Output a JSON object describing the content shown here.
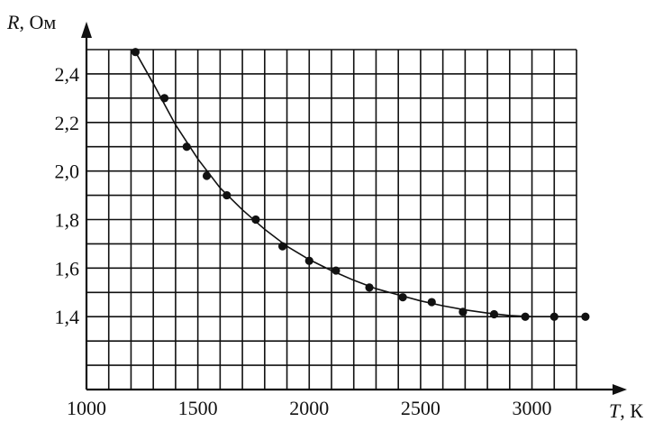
{
  "chart_data": {
    "type": "scatter",
    "xlabel": {
      "var": "T",
      "unit": ", К"
    },
    "ylabel": {
      "var": "R",
      "unit": ", Ом"
    },
    "xlim": [
      1000,
      3200
    ],
    "ylim": [
      1.1,
      2.5
    ],
    "x_ticks": [
      1000,
      1500,
      2000,
      2500,
      3000
    ],
    "x_tick_labels": [
      "1000",
      "1500",
      "2000",
      "2500",
      "3000"
    ],
    "y_ticks": [
      1.4,
      1.6,
      1.8,
      2.0,
      2.2,
      2.4
    ],
    "y_tick_labels": [
      "1,4",
      "1,6",
      "1,8",
      "2,0",
      "2,2",
      "2,4"
    ],
    "grid": true,
    "grid_step_x": 100,
    "grid_step_y": 0.1,
    "series": [
      {
        "type": "scatter",
        "x": [
          1220,
          1350,
          1450,
          1540,
          1630,
          1760,
          1880,
          2000,
          2120,
          2270,
          2420,
          2550,
          2690,
          2830,
          2970,
          3100,
          3240
        ],
        "y": [
          2.49,
          2.3,
          2.1,
          1.98,
          1.9,
          1.8,
          1.69,
          1.63,
          1.59,
          1.52,
          1.48,
          1.46,
          1.42,
          1.41,
          1.4,
          1.4,
          1.4
        ]
      },
      {
        "type": "line",
        "x": [
          1220,
          1300,
          1400,
          1500,
          1600,
          1700,
          1800,
          1900,
          2000,
          2100,
          2200,
          2300,
          2400,
          2500,
          2600,
          2700,
          2800,
          2900,
          3000,
          3100,
          3240
        ],
        "y": [
          2.49,
          2.36,
          2.19,
          2.05,
          1.93,
          1.84,
          1.76,
          1.69,
          1.635,
          1.59,
          1.55,
          1.515,
          1.49,
          1.465,
          1.445,
          1.428,
          1.415,
          1.405,
          1.4,
          1.4,
          1.4
        ]
      }
    ]
  }
}
